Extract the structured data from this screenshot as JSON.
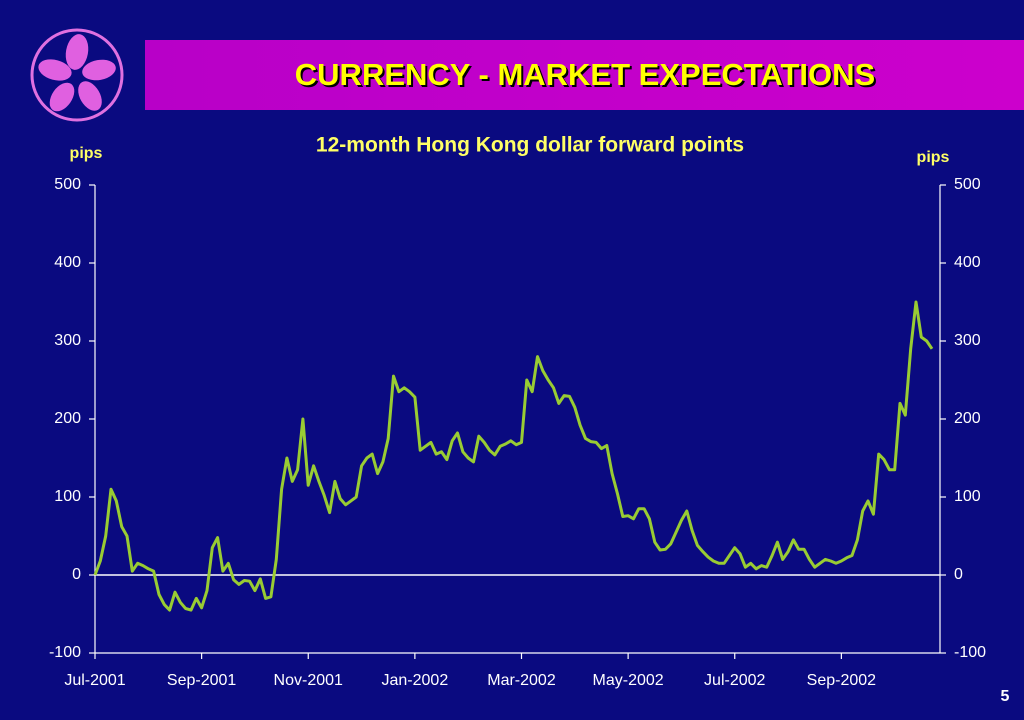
{
  "slide": {
    "title": "CURRENCY - MARKET EXPECTATIONS",
    "page": 5
  },
  "chart_data": {
    "type": "line",
    "title": "12-month Hong Kong dollar forward points",
    "ylabel": "pips",
    "y2label": "pips",
    "color": "#99cc33",
    "zero_line_color": "#ffffff",
    "x": [
      0,
      0.1,
      0.2,
      0.3,
      0.4,
      0.5,
      0.6,
      0.7,
      0.8,
      0.9,
      1,
      1.1,
      1.2,
      1.3,
      1.4,
      1.5,
      1.6,
      1.7,
      1.8,
      1.9,
      2,
      2.1,
      2.2,
      2.3,
      2.4,
      2.5,
      2.6,
      2.7,
      2.8,
      2.9,
      3,
      3.1,
      3.2,
      3.3,
      3.4,
      3.5,
      3.6,
      3.7,
      3.8,
      3.9,
      4,
      4.1,
      4.2,
      4.3,
      4.4,
      4.5,
      4.6,
      4.7,
      4.8,
      4.9,
      5,
      5.1,
      5.2,
      5.3,
      5.4,
      5.5,
      5.6,
      5.7,
      5.8,
      5.9,
      6,
      6.1,
      6.2,
      6.3,
      6.4,
      6.5,
      6.6,
      6.7,
      6.8,
      6.9,
      7,
      7.1,
      7.2,
      7.3,
      7.4,
      7.5,
      7.6,
      7.7,
      7.8,
      7.9,
      8,
      8.1,
      8.2,
      8.3,
      8.4,
      8.5,
      8.6,
      8.7,
      8.8,
      8.9,
      9,
      9.1,
      9.2,
      9.3,
      9.4,
      9.5,
      9.6,
      9.7,
      9.8,
      9.9,
      10,
      10.1,
      10.2,
      10.3,
      10.4,
      10.5,
      10.6,
      10.7,
      10.8,
      10.9,
      11,
      11.1,
      11.2,
      11.3,
      11.4,
      11.5,
      11.6,
      11.7,
      11.8,
      11.9,
      12,
      12.1,
      12.2,
      12.3,
      12.4,
      12.5,
      12.6,
      12.7,
      12.8,
      12.9,
      13,
      13.1,
      13.2,
      13.3,
      13.4,
      13.5,
      13.6,
      13.7,
      13.8,
      13.9,
      14,
      14.1,
      14.2,
      14.3,
      14.4,
      14.5,
      14.6,
      14.7,
      14.8,
      14.9,
      15,
      15.1,
      15.2,
      15.3,
      15.4,
      15.5,
      15.6,
      15.7
    ],
    "values": [
      0,
      18,
      50,
      110,
      95,
      62,
      50,
      5,
      15,
      12,
      8,
      5,
      -25,
      -38,
      -45,
      -22,
      -35,
      -43,
      -45,
      -30,
      -42,
      -20,
      35,
      48,
      5,
      15,
      -6,
      -12,
      -7,
      -8,
      -20,
      -5,
      -30,
      -28,
      20,
      110,
      150,
      120,
      135,
      200,
      115,
      140,
      120,
      102,
      80,
      120,
      98,
      90,
      95,
      100,
      140,
      150,
      155,
      130,
      145,
      175,
      255,
      235,
      240,
      235,
      228,
      160,
      165,
      170,
      155,
      158,
      148,
      172,
      182,
      158,
      150,
      145,
      178,
      170,
      160,
      154,
      165,
      168,
      172,
      167,
      170,
      250,
      235,
      280,
      262,
      250,
      240,
      220,
      230,
      229,
      215,
      192,
      175,
      171,
      170,
      162,
      166,
      130,
      104,
      75,
      76,
      72,
      85,
      85,
      72,
      42,
      32,
      33,
      40,
      55,
      70,
      82,
      57,
      38,
      30,
      23,
      18,
      15,
      15,
      25,
      35,
      27,
      10,
      15,
      8,
      12,
      10,
      25,
      42,
      20,
      30,
      45,
      33,
      33,
      20,
      10,
      15,
      20,
      18,
      15,
      18,
      22,
      25,
      45,
      82,
      95,
      78,
      155,
      148,
      135,
      135,
      220,
      205,
      290,
      350,
      305,
      300,
      290
    ],
    "xlim": [
      0,
      15.85
    ],
    "xticks": [
      {
        "value": 0,
        "label": "Jul-2001"
      },
      {
        "value": 2,
        "label": "Sep-2001"
      },
      {
        "value": 4,
        "label": "Nov-2001"
      },
      {
        "value": 6,
        "label": "Jan-2002"
      },
      {
        "value": 8,
        "label": "Mar-2002"
      },
      {
        "value": 10,
        "label": "May-2002"
      },
      {
        "value": 12,
        "label": "Jul-2002"
      },
      {
        "value": 14,
        "label": "Sep-2002"
      }
    ],
    "ylim": [
      -100,
      500
    ],
    "yticks": [
      -100,
      0,
      100,
      200,
      300,
      400,
      500
    ],
    "y2lim": [
      -100,
      500
    ],
    "y2ticks": [
      -100,
      0,
      100,
      200,
      300,
      400,
      500
    ]
  }
}
